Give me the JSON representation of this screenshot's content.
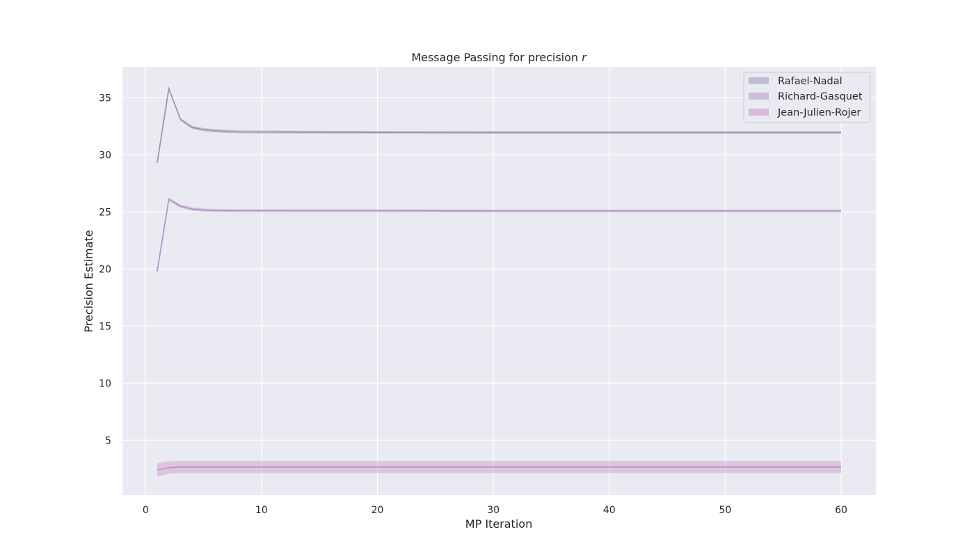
{
  "chart_data": {
    "type": "line",
    "title": "Message Passing for precision ",
    "title_symbol": "r",
    "xlabel": "MP Iteration",
    "ylabel": "Precision Estimate",
    "xlim": [
      -2,
      63
    ],
    "ylim": [
      0.2,
      37.7
    ],
    "xticks": [
      0,
      10,
      20,
      30,
      40,
      50,
      60
    ],
    "yticks": [
      5,
      10,
      15,
      20,
      25,
      30,
      35
    ],
    "grid": true,
    "legend_position": "top-right",
    "x": [
      1,
      2,
      3,
      4,
      5,
      6,
      7,
      8,
      10,
      15,
      20,
      30,
      40,
      50,
      60
    ],
    "series": [
      {
        "name": "Rafael-Nadal",
        "color": "#9e95b0",
        "values": [
          29.3,
          35.8,
          33.1,
          32.4,
          32.2,
          32.1,
          32.05,
          32.0,
          32.0,
          31.98,
          31.96,
          31.95,
          31.95,
          31.95,
          31.95
        ],
        "lower": [
          29.2,
          35.7,
          33.0,
          32.25,
          32.05,
          31.95,
          31.9,
          31.88,
          31.86,
          31.85,
          31.84,
          31.83,
          31.83,
          31.83,
          31.83
        ],
        "upper": [
          29.4,
          35.9,
          33.2,
          32.55,
          32.35,
          32.25,
          32.2,
          32.14,
          32.12,
          32.1,
          32.09,
          32.08,
          32.07,
          32.07,
          32.07
        ]
      },
      {
        "name": "Richard-Gasquet",
        "color": "#b596c9",
        "values": [
          19.8,
          26.1,
          25.5,
          25.25,
          25.15,
          25.12,
          25.1,
          25.1,
          25.1,
          25.1,
          25.1,
          25.08,
          25.08,
          25.08,
          25.08
        ],
        "lower": [
          19.7,
          25.95,
          25.35,
          25.1,
          25.0,
          24.98,
          24.97,
          24.96,
          24.96,
          24.96,
          24.96,
          24.95,
          24.95,
          24.95,
          24.95
        ],
        "upper": [
          19.9,
          26.25,
          25.65,
          25.4,
          25.3,
          25.26,
          25.24,
          25.23,
          25.23,
          25.22,
          25.22,
          25.21,
          25.21,
          25.21,
          25.21
        ]
      },
      {
        "name": "Jean-Julien-Rojer",
        "color": "#c88fc3",
        "values": [
          2.4,
          2.6,
          2.65,
          2.65,
          2.65,
          2.65,
          2.65,
          2.65,
          2.65,
          2.65,
          2.65,
          2.65,
          2.65,
          2.65,
          2.65
        ],
        "lower": [
          1.8,
          2.05,
          2.12,
          2.12,
          2.12,
          2.12,
          2.12,
          2.12,
          2.12,
          2.12,
          2.12,
          2.12,
          2.12,
          2.12,
          2.12
        ],
        "upper": [
          3.0,
          3.15,
          3.18,
          3.18,
          3.18,
          3.18,
          3.18,
          3.18,
          3.18,
          3.18,
          3.18,
          3.18,
          3.18,
          3.18,
          3.18
        ]
      }
    ]
  }
}
